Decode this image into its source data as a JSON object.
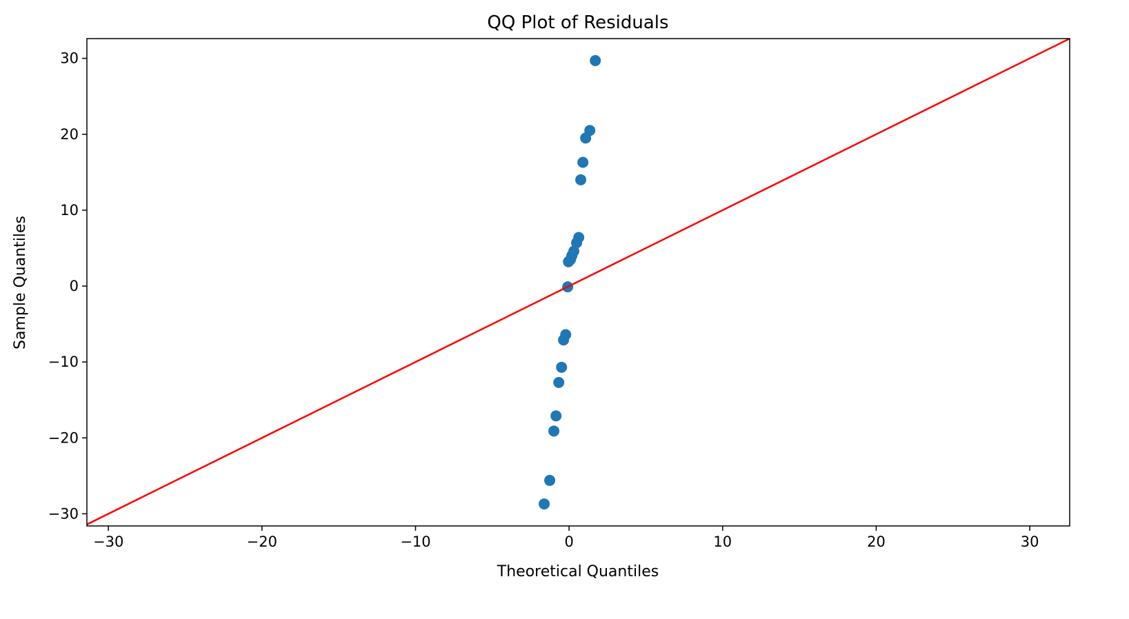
{
  "chart_data": {
    "type": "scatter",
    "title": "QQ Plot of Residuals",
    "xlabel": "Theoretical Quantiles",
    "ylabel": "Sample Quantiles",
    "xlim": [
      -31.4,
      32.6
    ],
    "ylim": [
      -31.6,
      32.6
    ],
    "xticks": [
      -30,
      -20,
      -10,
      0,
      10,
      20,
      30
    ],
    "yticks": [
      -30,
      -20,
      -10,
      0,
      10,
      20,
      30
    ],
    "grid": false,
    "points": [
      {
        "x": 1.71,
        "y": 29.7
      },
      {
        "x": 1.35,
        "y": 20.5
      },
      {
        "x": 1.08,
        "y": 19.5
      },
      {
        "x": 0.9,
        "y": 16.3
      },
      {
        "x": 0.76,
        "y": 14.0
      },
      {
        "x": 0.63,
        "y": 6.4
      },
      {
        "x": 0.49,
        "y": 5.7
      },
      {
        "x": 0.31,
        "y": 4.6
      },
      {
        "x": 0.18,
        "y": 4.0
      },
      {
        "x": 0.09,
        "y": 3.5
      },
      {
        "x": -0.04,
        "y": 3.2
      },
      {
        "x": -0.09,
        "y": -0.1
      },
      {
        "x": -0.22,
        "y": -6.4
      },
      {
        "x": -0.36,
        "y": -7.1
      },
      {
        "x": -0.49,
        "y": -10.7
      },
      {
        "x": -0.67,
        "y": -12.7
      },
      {
        "x": -0.85,
        "y": -17.1
      },
      {
        "x": -0.99,
        "y": -19.1
      },
      {
        "x": -1.26,
        "y": -25.6
      },
      {
        "x": -1.62,
        "y": -28.7
      }
    ],
    "reference_line": {
      "type": "45-degree",
      "slope": 1,
      "intercept": 0
    },
    "colors": {
      "points": "#1f77b4",
      "line": "#ff0000"
    }
  }
}
